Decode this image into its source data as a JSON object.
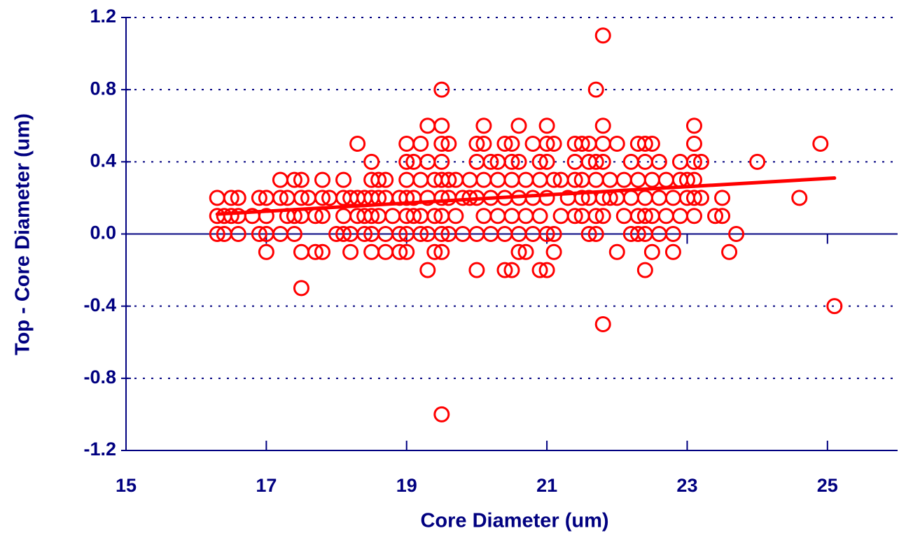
{
  "chart_data": {
    "type": "scatter",
    "xlabel": "Core Diameter (um)",
    "ylabel": "Top - Core Diameter (um)",
    "xlim": [
      15,
      26
    ],
    "xticks": [
      15,
      17,
      19,
      21,
      23,
      25
    ],
    "ylim": [
      -1.2,
      1.2
    ],
    "yticks": [
      -1.2,
      -0.8,
      -0.4,
      {
        "value": 0,
        "label": "0.0"
      },
      0.4,
      0.8,
      1.2
    ],
    "grid": true,
    "series": [
      {
        "color": "#ff0000",
        "x": [
          16.3,
          16.3,
          16.3,
          16.4,
          16.4,
          16.5,
          16.5,
          16.6,
          16.6,
          16.6,
          16.8,
          16.9,
          16.9,
          17.0,
          17.0,
          17.0,
          17.0,
          17.2,
          17.2,
          17.2,
          17.3,
          17.3,
          17.4,
          17.4,
          17.4,
          17.5,
          17.5,
          17.5,
          17.5,
          17.5,
          17.6,
          17.7,
          17.7,
          17.8,
          17.8,
          17.8,
          17.8,
          17.9,
          18.0,
          18.1,
          18.1,
          18.1,
          18.1,
          18.2,
          18.2,
          18.2,
          18.3,
          18.3,
          18.3,
          18.4,
          18.4,
          18.4,
          18.5,
          18.5,
          18.5,
          18.5,
          18.5,
          18.5,
          18.6,
          18.6,
          18.6,
          18.7,
          18.7,
          18.7,
          18.7,
          18.8,
          18.9,
          18.9,
          18.9,
          19.0,
          19.0,
          19.0,
          19.0,
          19.0,
          19.0,
          19.0,
          19.1,
          19.1,
          19.1,
          19.2,
          19.2,
          19.2,
          19.2,
          19.3,
          19.3,
          19.3,
          19.3,
          19.3,
          19.4,
          19.4,
          19.4,
          19.5,
          19.5,
          19.5,
          19.5,
          19.5,
          19.5,
          19.5,
          19.5,
          19.5,
          19.5,
          19.6,
          19.6,
          19.6,
          19.6,
          19.7,
          19.7,
          19.8,
          19.8,
          19.9,
          19.9,
          20.0,
          20.0,
          20.0,
          20.0,
          20.0,
          20.1,
          20.1,
          20.1,
          20.1,
          20.2,
          20.2,
          20.2,
          20.3,
          20.3,
          20.3,
          20.4,
          20.4,
          20.4,
          20.4,
          20.5,
          20.5,
          20.5,
          20.5,
          20.5,
          20.6,
          20.6,
          20.6,
          20.6,
          20.6,
          20.7,
          20.7,
          20.7,
          20.8,
          20.8,
          20.8,
          20.9,
          20.9,
          20.9,
          20.9,
          21.0,
          21.0,
          21.0,
          21.0,
          21.0,
          21.0,
          21.1,
          21.1,
          21.1,
          21.1,
          21.2,
          21.2,
          21.3,
          21.4,
          21.4,
          21.4,
          21.4,
          21.5,
          21.5,
          21.5,
          21.5,
          21.6,
          21.6,
          21.6,
          21.6,
          21.7,
          21.7,
          21.7,
          21.7,
          21.7,
          21.8,
          21.8,
          21.8,
          21.8,
          21.8,
          21.8,
          21.8,
          21.9,
          21.9,
          22.0,
          22.0,
          22.0,
          22.1,
          22.1,
          22.2,
          22.2,
          22.2,
          22.3,
          22.3,
          22.3,
          22.3,
          22.4,
          22.4,
          22.4,
          22.4,
          22.4,
          22.4,
          22.5,
          22.5,
          22.5,
          22.5,
          22.6,
          22.6,
          22.6,
          22.7,
          22.7,
          22.8,
          22.8,
          22.8,
          22.9,
          22.9,
          22.9,
          23.0,
          23.0,
          23.1,
          23.1,
          23.1,
          23.1,
          23.1,
          23.1,
          23.2,
          23.2,
          23.4,
          23.5,
          23.5,
          23.6,
          23.7,
          24.0,
          24.6,
          24.9,
          25.1
        ],
        "values": [
          0.2,
          0.1,
          0,
          0.1,
          0,
          0.2,
          0.1,
          0.2,
          0.1,
          0,
          0.1,
          0.2,
          0,
          0.2,
          0.1,
          0,
          -0.1,
          0.3,
          0.2,
          0,
          0.2,
          0.1,
          0.3,
          0.1,
          0,
          0.3,
          0.2,
          0.1,
          -0.1,
          -0.3,
          0.2,
          0.1,
          -0.1,
          0.3,
          0.2,
          0.1,
          -0.1,
          0.2,
          0,
          0.3,
          0.2,
          0.1,
          0,
          0.2,
          0,
          -0.1,
          0.5,
          0.2,
          0.1,
          0.2,
          0.1,
          0,
          0.4,
          0.3,
          0.2,
          0.1,
          0,
          -0.1,
          0.3,
          0.2,
          0.1,
          0.3,
          0.2,
          0,
          -0.1,
          0.1,
          0.2,
          0,
          -0.1,
          0.5,
          0.4,
          0.3,
          0.2,
          0.1,
          0,
          -0.1,
          0.4,
          0.2,
          0.1,
          0.5,
          0.3,
          0.1,
          0,
          0.6,
          0.4,
          0.2,
          0,
          -0.2,
          0.3,
          0.1,
          -0.1,
          0.8,
          0.6,
          0.5,
          0.4,
          0.3,
          0.2,
          0.1,
          0,
          -0.1,
          -1.0,
          0.5,
          0.3,
          0.2,
          0,
          0.3,
          0.1,
          0.2,
          0,
          0.3,
          0.2,
          0.5,
          0.4,
          0.2,
          0,
          -0.2,
          0.6,
          0.5,
          0.3,
          0.1,
          0.4,
          0.2,
          0,
          0.4,
          0.3,
          0.1,
          0.5,
          0.2,
          0,
          -0.2,
          0.5,
          0.4,
          0.3,
          0.1,
          -0.2,
          0.6,
          0.4,
          0.2,
          0,
          -0.1,
          0.3,
          0.1,
          -0.1,
          0.5,
          0.2,
          0,
          0.4,
          0.3,
          0.1,
          -0.2,
          0.6,
          0.5,
          0.4,
          0.2,
          0,
          -0.2,
          0.5,
          0.3,
          0,
          -0.1,
          0.3,
          0.1,
          0.2,
          0.5,
          0.4,
          0.3,
          0.1,
          0.5,
          0.3,
          0.2,
          0.1,
          0.5,
          0.4,
          0.2,
          0,
          0.8,
          0.4,
          0.3,
          0.1,
          0,
          1.1,
          0.6,
          0.5,
          0.4,
          0.2,
          0.1,
          -0.5,
          0.3,
          0.2,
          0.5,
          0.2,
          -0.1,
          0.3,
          0.1,
          0.4,
          0.2,
          0,
          0.5,
          0.3,
          0.1,
          0,
          0.5,
          0.4,
          0.2,
          0.1,
          0,
          -0.2,
          0.5,
          0.3,
          0.1,
          -0.1,
          0.4,
          0.2,
          0,
          0.3,
          0.1,
          0.2,
          0,
          -0.1,
          0.4,
          0.3,
          0.1,
          0.3,
          0.2,
          0.6,
          0.5,
          0.4,
          0.3,
          0.2,
          0.1,
          0.4,
          0.2,
          0.1,
          0.2,
          0.1,
          -0.1,
          0,
          0.4,
          0.2,
          0.5,
          -0.4
        ]
      }
    ],
    "trendline": {
      "color": "#ff0000",
      "x": [
        16.3,
        25.1
      ],
      "values": [
        0.11,
        0.31
      ]
    }
  }
}
